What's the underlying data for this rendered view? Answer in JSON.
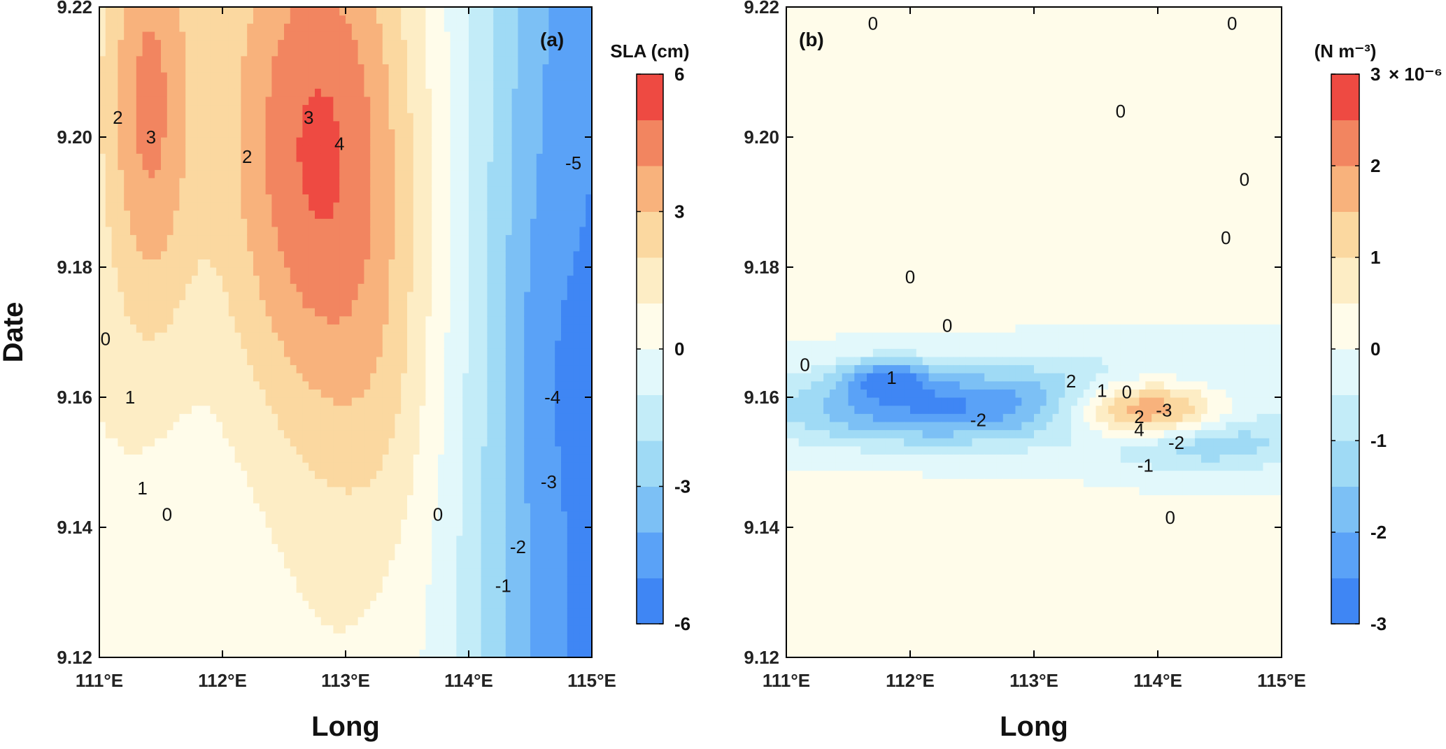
{
  "chart_data": [
    {
      "type": "heatmap",
      "panel_label": "(a)",
      "xlabel": "Long",
      "ylabel": "Date",
      "x_ticks": [
        "111°E",
        "112°E",
        "113°E",
        "114°E",
        "115°E"
      ],
      "y_ticks": [
        "9.12",
        "9.14",
        "9.16",
        "9.18",
        "9.20",
        "9.22"
      ],
      "xlim": [
        111,
        115
      ],
      "ylim": [
        9.12,
        9.22
      ],
      "colorbar": {
        "title": "SLA (cm)",
        "exponent": "",
        "range": [
          -6,
          6
        ],
        "ticks": [
          "6",
          "3",
          "0",
          "-3",
          "-6"
        ],
        "levels": 12,
        "colors": [
          "#3f86f4",
          "#5aa2f7",
          "#7cc0f5",
          "#9fdaf5",
          "#c3ecf8",
          "#e2f8fb",
          "#fffcea",
          "#fdedc5",
          "#fbd8a0",
          "#f8b27c",
          "#f28560",
          "#ee4a42"
        ]
      },
      "features": [
        {
          "x": 111.4,
          "y": 9.205,
          "sigma_x": 0.25,
          "sigma_y": 0.025,
          "amp": 3.2
        },
        {
          "x": 112.8,
          "y": 9.198,
          "sigma_x": 0.55,
          "sigma_y": 0.03,
          "amp": 4.3
        },
        {
          "x": 113.3,
          "y": 9.16,
          "sigma_x": 0.35,
          "sigma_y": 0.02,
          "amp": 0.8
        },
        {
          "x": 111.9,
          "y": 9.135,
          "sigma_x": 0.55,
          "sigma_y": 0.03,
          "amp": -0.7
        },
        {
          "x": 114.6,
          "y": 9.165,
          "sigma_x": 0.25,
          "sigma_y": 0.02,
          "amp": -0.6
        }
      ],
      "background": {
        "type": "east_west_drop",
        "west_value": 1.0,
        "east_value": -6.0,
        "center_lon": 114.2,
        "width": 0.35
      },
      "contour_labels": [
        {
          "x": 111.05,
          "y": 9.169,
          "text": "0"
        },
        {
          "x": 111.25,
          "y": 9.16,
          "text": "1"
        },
        {
          "x": 111.15,
          "y": 9.203,
          "text": "2"
        },
        {
          "x": 111.42,
          "y": 9.2,
          "text": "3"
        },
        {
          "x": 112.7,
          "y": 9.203,
          "text": "3"
        },
        {
          "x": 112.95,
          "y": 9.199,
          "text": "4"
        },
        {
          "x": 112.2,
          "y": 9.197,
          "text": "2"
        },
        {
          "x": 111.35,
          "y": 9.146,
          "text": "1"
        },
        {
          "x": 111.55,
          "y": 9.142,
          "text": "0"
        },
        {
          "x": 113.75,
          "y": 9.142,
          "text": "0"
        },
        {
          "x": 114.28,
          "y": 9.131,
          "text": "-1"
        },
        {
          "x": 114.4,
          "y": 9.137,
          "text": "-2"
        },
        {
          "x": 114.65,
          "y": 9.147,
          "text": "-3"
        },
        {
          "x": 114.68,
          "y": 9.16,
          "text": "-4"
        },
        {
          "x": 114.85,
          "y": 9.196,
          "text": "-5"
        }
      ]
    },
    {
      "type": "heatmap",
      "panel_label": "(b)",
      "xlabel": "Long",
      "ylabel": "",
      "x_ticks": [
        "111°E",
        "112°E",
        "113°E",
        "114°E",
        "115°E"
      ],
      "y_ticks": [
        "9.12",
        "9.14",
        "9.16",
        "9.18",
        "9.20",
        "9.22"
      ],
      "xlim": [
        111,
        115
      ],
      "ylim": [
        9.12,
        9.22
      ],
      "colorbar": {
        "title": "(N m⁻³)",
        "exponent": "× 10⁻⁶",
        "range": [
          -3,
          3
        ],
        "ticks": [
          "3",
          "2",
          "1",
          "0",
          "-1",
          "-2",
          "-3"
        ],
        "levels": 12,
        "colors": [
          "#3f86f4",
          "#5aa2f7",
          "#7cc0f5",
          "#9fdaf5",
          "#c3ecf8",
          "#e2f8fb",
          "#fffcea",
          "#fdedc5",
          "#fbd8a0",
          "#f8b27c",
          "#f28560",
          "#ee4a42"
        ]
      },
      "features": [
        {
          "x": 113.9,
          "y": 9.158,
          "sigma_x": 0.45,
          "sigma_y": 0.0035,
          "amp": 3.2
        },
        {
          "x": 112.1,
          "y": 9.158,
          "sigma_x": 0.9,
          "sigma_y": 0.004,
          "amp": -2.1
        },
        {
          "x": 114.3,
          "y": 9.153,
          "sigma_x": 0.6,
          "sigma_y": 0.003,
          "amp": -1.6
        },
        {
          "x": 111.8,
          "y": 9.163,
          "sigma_x": 0.25,
          "sigma_y": 0.002,
          "amp": -1.8
        },
        {
          "x": 113.5,
          "y": 9.161,
          "sigma_x": 1.2,
          "sigma_y": 0.0045,
          "amp": -1.2
        },
        {
          "x": 113.0,
          "y": 9.19,
          "sigma_x": 1.5,
          "sigma_y": 0.02,
          "amp": 0.15
        },
        {
          "x": 112.0,
          "y": 9.135,
          "sigma_x": 1.5,
          "sigma_y": 0.02,
          "amp": 0.12
        }
      ],
      "background": {
        "type": "none"
      },
      "contour_labels": [
        {
          "x": 111.7,
          "y": 9.2175,
          "text": "0"
        },
        {
          "x": 114.6,
          "y": 9.2175,
          "text": "0"
        },
        {
          "x": 113.7,
          "y": 9.204,
          "text": "0"
        },
        {
          "x": 114.7,
          "y": 9.1935,
          "text": "0"
        },
        {
          "x": 114.55,
          "y": 9.1845,
          "text": "0"
        },
        {
          "x": 112.0,
          "y": 9.1785,
          "text": "0"
        },
        {
          "x": 112.3,
          "y": 9.171,
          "text": "0"
        },
        {
          "x": 111.15,
          "y": 9.165,
          "text": "0"
        },
        {
          "x": 111.85,
          "y": 9.163,
          "text": "1"
        },
        {
          "x": 113.3,
          "y": 9.1625,
          "text": "2"
        },
        {
          "x": 113.55,
          "y": 9.161,
          "text": "1"
        },
        {
          "x": 113.75,
          "y": 9.1608,
          "text": "0"
        },
        {
          "x": 112.55,
          "y": 9.1565,
          "text": "-2"
        },
        {
          "x": 113.85,
          "y": 9.157,
          "text": "2"
        },
        {
          "x": 114.05,
          "y": 9.158,
          "text": "-3"
        },
        {
          "x": 113.85,
          "y": 9.155,
          "text": "4"
        },
        {
          "x": 114.15,
          "y": 9.153,
          "text": "-2"
        },
        {
          "x": 113.9,
          "y": 9.1495,
          "text": "-1"
        },
        {
          "x": 114.1,
          "y": 9.1415,
          "text": "0"
        }
      ]
    }
  ]
}
